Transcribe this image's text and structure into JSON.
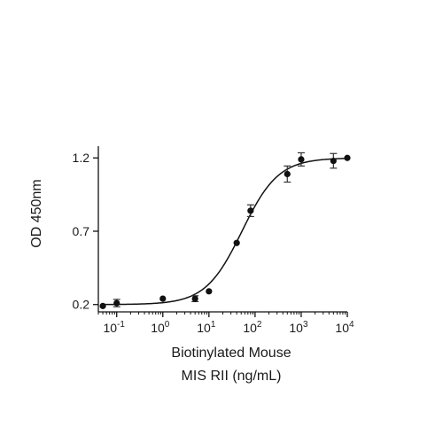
{
  "chart_data": {
    "type": "scatter",
    "title": "",
    "xlabel_lines": [
      "Biotinylated Mouse",
      "MIS RII (ng/mL)"
    ],
    "ylabel": "OD 450nm",
    "x_scale": "log",
    "xlim": [
      0.04,
      10000
    ],
    "ylim": [
      0.15,
      1.28
    ],
    "x_ticks": [
      {
        "value": 0.1,
        "base": "10",
        "exp": "-1"
      },
      {
        "value": 1,
        "base": "10",
        "exp": "0"
      },
      {
        "value": 10,
        "base": "10",
        "exp": "1"
      },
      {
        "value": 100,
        "base": "10",
        "exp": "2"
      },
      {
        "value": 1000,
        "base": "10",
        "exp": "3"
      },
      {
        "value": 10000,
        "base": "10",
        "exp": "4"
      }
    ],
    "y_ticks": [
      {
        "value": 0.2,
        "label": "0.2"
      },
      {
        "value": 0.7,
        "label": "0.7"
      },
      {
        "value": 1.2,
        "label": "1.2"
      }
    ],
    "grid": false,
    "series": [
      {
        "points": [
          {
            "x": 0.05,
            "y": 0.19,
            "err": 0.0
          },
          {
            "x": 0.1,
            "y": 0.21,
            "err": 0.025
          },
          {
            "x": 1,
            "y": 0.24,
            "err": 0.0
          },
          {
            "x": 5,
            "y": 0.24,
            "err": 0.02
          },
          {
            "x": 10,
            "y": 0.29,
            "err": 0.0
          },
          {
            "x": 40,
            "y": 0.62,
            "err": 0.0
          },
          {
            "x": 80,
            "y": 0.84,
            "err": 0.04
          },
          {
            "x": 500,
            "y": 1.09,
            "err": 0.055
          },
          {
            "x": 1000,
            "y": 1.19,
            "err": 0.045
          },
          {
            "x": 5000,
            "y": 1.18,
            "err": 0.05
          },
          {
            "x": 10000,
            "y": 1.2,
            "err": 0.0
          }
        ],
        "fit": {
          "model": "4PL",
          "bottom": 0.2,
          "top": 1.2,
          "ec50": 52,
          "hill": 1.1
        }
      }
    ],
    "colors": {
      "ink": "#111111"
    }
  }
}
